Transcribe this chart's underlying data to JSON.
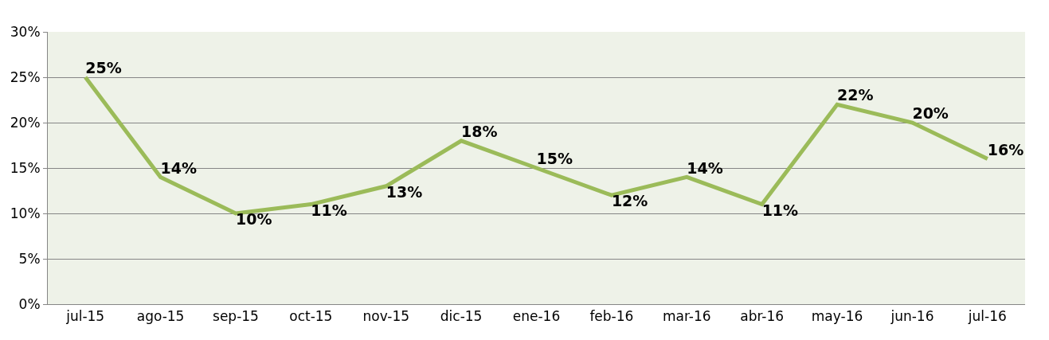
{
  "chart_data": {
    "type": "line",
    "categories": [
      "jul-15",
      "ago-15",
      "sep-15",
      "oct-15",
      "nov-15",
      "dic-15",
      "ene-16",
      "feb-16",
      "mar-16",
      "abr-16",
      "may-16",
      "jun-16",
      "jul-16"
    ],
    "values": [
      25,
      14,
      10,
      11,
      13,
      18,
      15,
      12,
      14,
      11,
      22,
      20,
      16
    ],
    "value_labels": [
      "25%",
      "14%",
      "10%",
      "11%",
      "13%",
      "18%",
      "15%",
      "12%",
      "14%",
      "11%",
      "22%",
      "20%",
      "16%"
    ],
    "color": "#9bbb59",
    "ylim": [
      0,
      30
    ],
    "yticks": [
      {
        "value": 0,
        "label": "0%"
      },
      {
        "value": 5,
        "label": "5%"
      },
      {
        "value": 10,
        "label": "10%"
      },
      {
        "value": 15,
        "label": "15%"
      },
      {
        "value": 20,
        "label": "20%"
      },
      {
        "value": 25,
        "label": "25%"
      },
      {
        "value": 30,
        "label": "30%"
      }
    ],
    "grid": "y",
    "legend": false,
    "marker": "none",
    "line_style": "solid"
  }
}
